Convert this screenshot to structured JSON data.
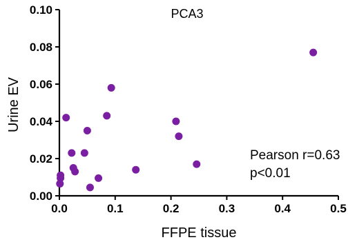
{
  "chart_data": {
    "type": "scatter",
    "title": "PCA3",
    "xlabel": "FFPE tissue",
    "ylabel": "Urine EV",
    "xlim": [
      0.0,
      0.5
    ],
    "ylim": [
      0.0,
      0.1
    ],
    "x_ticks": [
      "0.0",
      "0.1",
      "0.2",
      "0.3",
      "0.4",
      "0.5"
    ],
    "y_ticks": [
      "0.00",
      "0.02",
      "0.04",
      "0.06",
      "0.08",
      "0.10"
    ],
    "grid": false,
    "marker_color": "#7a1fa2",
    "annotations": [
      "Pearson r=0.63",
      "p<0.01"
    ],
    "series": [
      {
        "x": [
          0.002,
          0.002,
          0.001,
          0.012,
          0.022,
          0.025,
          0.028,
          0.045,
          0.05,
          0.055,
          0.07,
          0.085,
          0.093,
          0.137,
          0.209,
          0.214,
          0.246,
          0.455
        ],
        "y": [
          0.011,
          0.0095,
          0.0065,
          0.042,
          0.023,
          0.015,
          0.013,
          0.023,
          0.035,
          0.0045,
          0.0095,
          0.043,
          0.058,
          0.014,
          0.04,
          0.032,
          0.017,
          0.077
        ]
      }
    ]
  }
}
